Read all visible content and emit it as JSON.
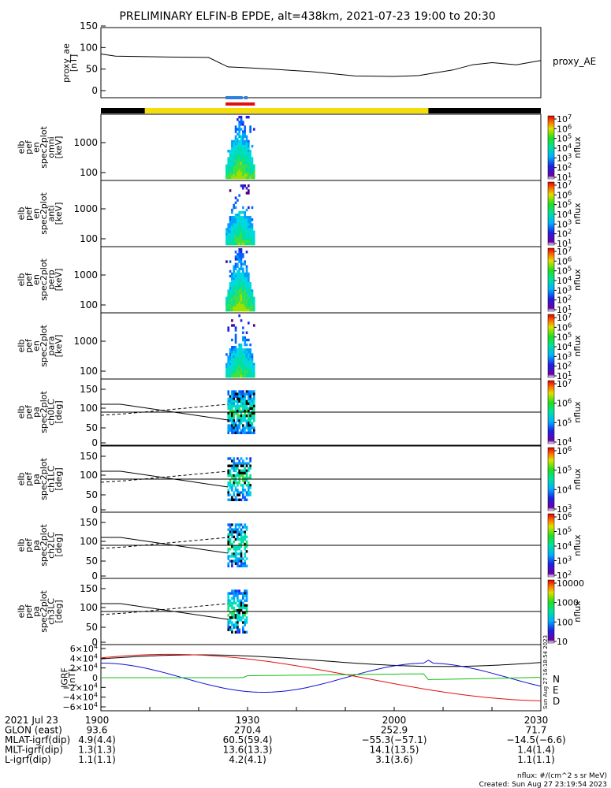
{
  "title": "PRELIMINARY ELFIN-B EPDE, alt=438km, 2021-07-23 19:00 to 20:30",
  "colors": {
    "ae_line": "#000000",
    "bar_blue": "#2f7fe0",
    "bar_red": "#e01010",
    "bar_yellow": "#f5dd0a",
    "bar_black": "#000000",
    "igrf_n": "#000000",
    "igrf_e": "#1010d0",
    "igrf_d": "#e01010",
    "igrf_green": "#10c010"
  },
  "chart_data": [
    {
      "name": "proxy_ae",
      "type": "line",
      "ylabel": [
        "proxy_ae",
        "[nT]"
      ],
      "ylim": [
        0,
        150
      ],
      "yticks": [
        "150",
        "100",
        "50",
        "0"
      ],
      "legend": "proxy_AE",
      "x_minutes": [
        0,
        3,
        8,
        14,
        22,
        26,
        30,
        35,
        43,
        52,
        60,
        65,
        72,
        76,
        80,
        85,
        90
      ],
      "y": [
        85,
        80,
        79,
        78,
        77,
        55,
        53,
        50,
        44,
        34,
        33,
        35,
        48,
        60,
        65,
        60,
        70
      ]
    },
    {
      "name": "status_bars",
      "type": "bar",
      "segments": [
        {
          "color": "bar_black",
          "start": 0,
          "end": 9
        },
        {
          "color": "bar_yellow",
          "start": 9,
          "end": 67
        },
        {
          "color": "bar_black",
          "start": 67,
          "end": 90
        }
      ],
      "blue_bars": [
        [
          25.5,
          29.0
        ],
        [
          29.3,
          30.0
        ]
      ],
      "red_bar": [
        25.5,
        31.5
      ]
    },
    {
      "name": "spectrograms",
      "type": "heatmap",
      "panels": [
        {
          "ylabel": [
            "elb",
            "pef",
            "en",
            "spec2plot",
            "omni",
            "[keV]"
          ],
          "yticks": [
            "1000",
            "100"
          ],
          "cbar": [
            "10^7",
            "10^6",
            "10^5",
            "10^4",
            "10^3",
            "10^2",
            "10^1"
          ],
          "cbar_label": "nflux"
        },
        {
          "ylabel": [
            "elb",
            "pef",
            "en",
            "spec2plot",
            "anti",
            "[keV]"
          ],
          "yticks": [
            "1000",
            "100"
          ],
          "cbar": [
            "10^7",
            "10^6",
            "10^5",
            "10^4",
            "10^3",
            "10^2",
            "10^1"
          ],
          "cbar_label": "nflux"
        },
        {
          "ylabel": [
            "elb",
            "pef",
            "en",
            "spec2plot",
            "perp",
            "[keV]"
          ],
          "yticks": [
            "1000",
            "100"
          ],
          "cbar": [
            "10^7",
            "10^6",
            "10^5",
            "10^4",
            "10^3",
            "10^2",
            "10^1"
          ],
          "cbar_label": "nflux"
        },
        {
          "ylabel": [
            "elb",
            "pef",
            "en",
            "spec2plot",
            "para",
            "[keV]"
          ],
          "yticks": [
            "1000",
            "100"
          ],
          "cbar": [
            "10^7",
            "10^6",
            "10^5",
            "10^4",
            "10^3",
            "10^2",
            "10^1"
          ],
          "cbar_label": "nflux"
        },
        {
          "ylabel": [
            "elb",
            "pef",
            "pa",
            "spec2plot",
            "ch0LC",
            "[deg]"
          ],
          "yticks": [
            "150",
            "100",
            "50",
            "0"
          ],
          "cbar": [
            "10^7",
            "10^6",
            "10^5",
            "10^4"
          ],
          "cbar_label": "nflux"
        },
        {
          "ylabel": [
            "elb",
            "pef",
            "pa",
            "spec2plot",
            "ch1LC",
            "[deg]"
          ],
          "yticks": [
            "150",
            "100",
            "50",
            "0"
          ],
          "cbar": [
            "10^6",
            "10^5",
            "10^4",
            "10^3"
          ],
          "cbar_label": "nflux"
        },
        {
          "ylabel": [
            "elb",
            "pef",
            "pa",
            "spec2plot",
            "ch2LC",
            "[deg]"
          ],
          "yticks": [
            "150",
            "100",
            "50",
            "0"
          ],
          "cbar": [
            "10^6",
            "10^5",
            "10^4",
            "10^3",
            "10^2"
          ],
          "cbar_label": "nflux"
        },
        {
          "ylabel": [
            "elb",
            "pef",
            "pa",
            "spec2plot",
            "ch3LC",
            "[deg]"
          ],
          "yticks": [
            "150",
            "100",
            "50",
            "0"
          ],
          "cbar": [
            "10000",
            "1000",
            "100",
            "10"
          ],
          "cbar_label": "nflux"
        }
      ]
    },
    {
      "name": "igrf",
      "type": "line",
      "ylabel": [
        "IGRF",
        "[nT]"
      ],
      "ylim": [
        -60000,
        60000
      ],
      "yticks": [
        "6×10^4",
        "4×10^4",
        "2×10^4",
        "0",
        "−2×10^4",
        "−4×10^4",
        "−6×10^4"
      ],
      "legend": [
        "N",
        "E",
        "D"
      ],
      "side_text": "Sun Aug 27 16:18:54 2023"
    }
  ],
  "xaxis": {
    "rows": [
      {
        "label": "2021 Jul 23",
        "values": [
          "1900",
          "1930",
          "2000",
          "2030"
        ]
      },
      {
        "label": "GLON (east)",
        "values": [
          "93.6",
          "270.4",
          "252.9",
          "71.7"
        ]
      },
      {
        "label": "MLAT-igrf(dip)",
        "values": [
          "4.9(4.4)",
          "60.5(59.4)",
          "−55.3(−57.1)",
          "−14.5(−6.6)"
        ]
      },
      {
        "label": "MLT-igrf(dip)",
        "values": [
          "1.3(1.3)",
          "13.6(13.3)",
          "14.1(13.5)",
          "1.4(1.4)"
        ]
      },
      {
        "label": "L-igrf(dip)",
        "values": [
          "1.1(1.1)",
          "4.2(4.1)",
          "3.1(3.6)",
          "1.1(1.1)"
        ]
      }
    ]
  },
  "footer": {
    "units": "nflux: #/(cm^2 s sr MeV)",
    "created": "Created: Sun Aug 27 23:19:54 2023"
  }
}
